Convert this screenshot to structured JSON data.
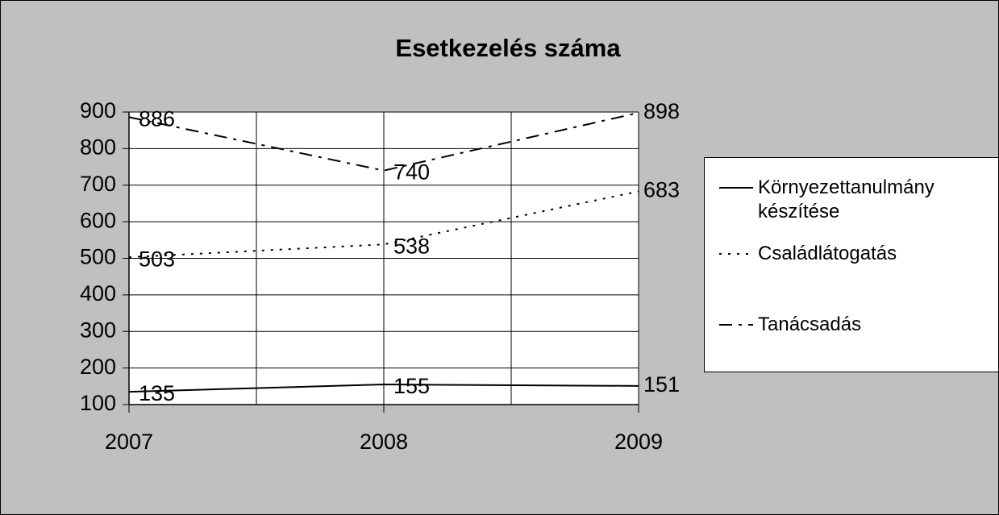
{
  "chart_data": {
    "type": "line",
    "title": "Esetkezelés száma",
    "categories": [
      "2007",
      "2008",
      "2009"
    ],
    "series": [
      {
        "name": "Környezettanulmány készítése",
        "color": "#000000",
        "dash": "solid",
        "values": [
          135,
          155,
          151
        ]
      },
      {
        "name": "Családlátogatás",
        "color": "#000000",
        "dash": "dotted",
        "values": [
          503,
          538,
          683
        ]
      },
      {
        "name": "Tanácsadás",
        "color": "#000000",
        "dash": "dashdot",
        "values": [
          886,
          740,
          898
        ]
      }
    ],
    "ylim": [
      100,
      900
    ],
    "yticks": [
      100,
      200,
      300,
      400,
      500,
      600,
      700,
      800,
      900
    ],
    "grid": true,
    "legend": "right"
  }
}
